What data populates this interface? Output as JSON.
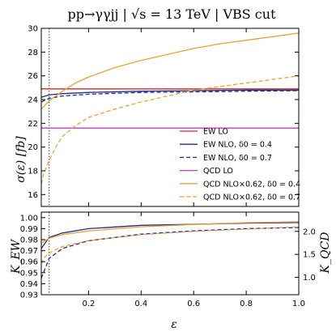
{
  "chart_data": [
    {
      "type": "line",
      "panel": "top",
      "title": "pp→γγjj | √s = 13 TeV | VBS cut",
      "xlabel": "",
      "ylabel": "σ(ε) [fb]",
      "xlim": [
        0.02,
        1.0
      ],
      "ylim": [
        15,
        30
      ],
      "yticks": [
        16,
        18,
        20,
        22,
        24,
        26,
        28,
        30
      ],
      "vline_x": 0.05,
      "legend_position": "lower-right",
      "series": [
        {
          "name": "EW LO",
          "color": "#d62728",
          "dash": "solid",
          "x": [
            0.02,
            0.1,
            0.2,
            0.4,
            0.6,
            0.8,
            1.0
          ],
          "y": [
            24.9,
            24.9,
            24.9,
            24.9,
            24.9,
            24.9,
            24.9
          ]
        },
        {
          "name": "EW NLO, δ0 = 0.4",
          "color": "#1f2d8a",
          "dash": "solid",
          "x": [
            0.02,
            0.05,
            0.1,
            0.2,
            0.4,
            0.6,
            0.8,
            1.0
          ],
          "y": [
            24.2,
            24.4,
            24.5,
            24.6,
            24.7,
            24.75,
            24.8,
            24.8
          ]
        },
        {
          "name": "EW NLO, δ0 = 0.7",
          "color": "#1f2d8a",
          "dash": "dashed",
          "x": [
            0.02,
            0.05,
            0.1,
            0.2,
            0.4,
            0.6,
            0.8,
            1.0
          ],
          "y": [
            23.8,
            24.1,
            24.3,
            24.45,
            24.6,
            24.65,
            24.7,
            24.75
          ]
        },
        {
          "name": "QCD LO",
          "color": "#cc33cc",
          "dash": "solid",
          "x": [
            0.02,
            0.2,
            0.4,
            0.6,
            0.8,
            1.0
          ],
          "y": [
            21.6,
            21.6,
            21.6,
            21.6,
            21.6,
            21.6
          ]
        },
        {
          "name": "QCD NLO×0.62, δ0 = 0.4",
          "color": "#f0a030",
          "dash": "solid",
          "x": [
            0.02,
            0.05,
            0.1,
            0.15,
            0.2,
            0.3,
            0.4,
            0.5,
            0.6,
            0.7,
            0.8,
            0.9,
            1.0
          ],
          "y": [
            23.2,
            23.9,
            24.7,
            25.4,
            25.9,
            26.7,
            27.3,
            27.8,
            28.3,
            28.7,
            29.0,
            29.3,
            29.6
          ]
        },
        {
          "name": "QCD NLO×0.62, δ0 = 0.7",
          "color": "#f0a030",
          "dash": "dashed",
          "x": [
            0.02,
            0.03,
            0.05,
            0.08,
            0.1,
            0.15,
            0.2,
            0.3,
            0.4,
            0.5,
            0.6,
            0.7,
            0.8,
            0.9,
            1.0
          ],
          "y": [
            16.9,
            17.8,
            18.9,
            20.2,
            20.9,
            21.8,
            22.5,
            23.2,
            23.8,
            24.3,
            24.8,
            25.1,
            25.4,
            25.7,
            26.0
          ]
        }
      ]
    },
    {
      "type": "line",
      "panel": "bottom",
      "xlabel": "ε",
      "ylabel_left": "K_EW",
      "ylabel_right": "K_QCD",
      "xlim": [
        0.02,
        1.0
      ],
      "xticks": [
        0.2,
        0.4,
        0.6,
        0.8,
        1.0
      ],
      "xtick_labels": [
        "0.2",
        "0.4",
        "0.6",
        "0.8",
        "1.0"
      ],
      "ylim_left": [
        0.93,
        1.005
      ],
      "yticks_left": [
        0.93,
        0.94,
        0.95,
        0.96,
        0.97,
        0.98,
        0.99,
        1.0
      ],
      "ylim_right": [
        0.62,
        2.42
      ],
      "yticks_right": [
        1.0,
        1.5,
        2.0
      ],
      "series": [
        {
          "name": "EW NLO, δ0 = 0.4",
          "axis": "left",
          "color": "#1f2d8a",
          "dash": "solid",
          "x": [
            0.02,
            0.05,
            0.1,
            0.2,
            0.4,
            0.6,
            0.8,
            1.0
          ],
          "y": [
            0.972,
            0.982,
            0.986,
            0.99,
            0.993,
            0.994,
            0.995,
            0.9955
          ]
        },
        {
          "name": "EW NLO, δ0 = 0.7",
          "axis": "left",
          "color": "#1f2d8a",
          "dash": "dashed",
          "x": [
            0.02,
            0.05,
            0.1,
            0.2,
            0.4,
            0.6,
            0.8,
            1.0
          ],
          "y": [
            0.945,
            0.963,
            0.972,
            0.979,
            0.985,
            0.988,
            0.99,
            0.991
          ]
        },
        {
          "name": "QCD NLO×0.62, δ0 = 0.4",
          "axis": "right",
          "color": "#f0a030",
          "dash": "solid",
          "x": [
            0.02,
            0.05,
            0.1,
            0.2,
            0.4,
            0.6,
            0.8,
            1.0
          ],
          "y": [
            1.75,
            1.85,
            1.93,
            2.01,
            2.1,
            2.15,
            2.19,
            2.21
          ]
        },
        {
          "name": "QCD NLO×0.62, δ0 = 0.7",
          "axis": "right",
          "color": "#f0a030",
          "dash": "dashed",
          "x": [
            0.02,
            0.03,
            0.05,
            0.1,
            0.2,
            0.4,
            0.6,
            0.8,
            1.0
          ],
          "y": [
            1.3,
            1.42,
            1.53,
            1.67,
            1.8,
            1.93,
            2.0,
            2.05,
            2.1
          ]
        }
      ]
    }
  ]
}
